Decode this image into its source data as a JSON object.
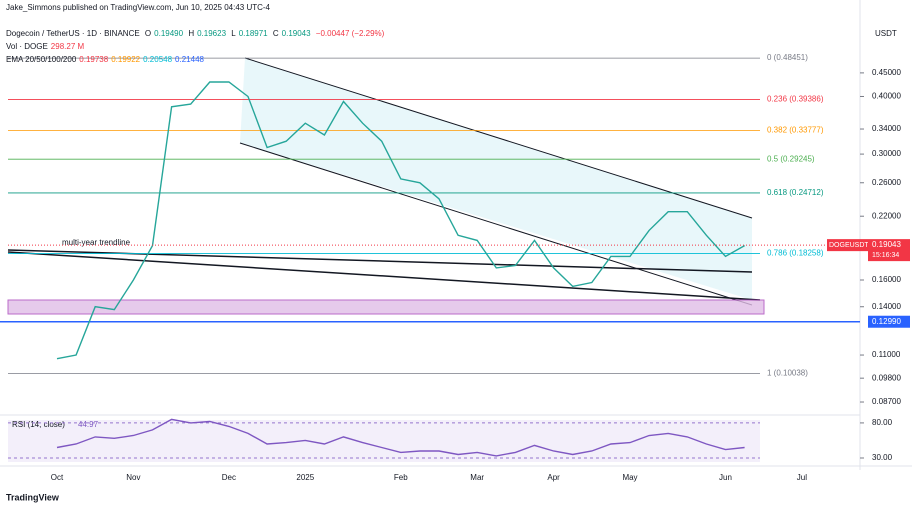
{
  "header": {
    "author": "Jake_Simmons published on TradingView.com, Jun 10, 2025 04:43 UTC-4",
    "symbol": "Dogecoin / TetherUS · 1D · BINANCE",
    "ohlc": [
      {
        "key": "O",
        "value": "0.19490"
      },
      {
        "key": "H",
        "value": "0.19623"
      },
      {
        "key": "L",
        "value": "0.18971"
      },
      {
        "key": "C",
        "value": "0.19043"
      }
    ],
    "change": "−0.00447 (−2.29%)",
    "volume_label": "Vol · DOGE",
    "volume": "298.27 M",
    "ema_label": "EMA 20/50/100/200",
    "ema_values": [
      "0.19738",
      "0.19922",
      "0.20548",
      "0.21448"
    ]
  },
  "currency": "USDT",
  "footer": "TradingView",
  "chart_data": [
    {
      "type": "line",
      "log_scale": true,
      "categories": [
        "Oct",
        null,
        null,
        null,
        "Nov",
        null,
        null,
        null,
        null,
        "Dec",
        null,
        null,
        null,
        "2025",
        null,
        null,
        null,
        null,
        "Feb",
        null,
        null,
        null,
        "Mar",
        null,
        null,
        null,
        "Apr",
        null,
        null,
        null,
        "May",
        null,
        null,
        null,
        null,
        "Jun",
        null,
        null,
        null,
        "Jul",
        null,
        null
      ],
      "series": [
        {
          "color": "#26a69a",
          "values": [
            0.108,
            0.11,
            0.14,
            0.138,
            0.16,
            0.19,
            0.38,
            0.385,
            0.43,
            0.43,
            0.4,
            0.31,
            0.32,
            0.35,
            0.33,
            0.39,
            0.35,
            0.32,
            0.265,
            0.26,
            0.24,
            0.2,
            0.195,
            0.17,
            0.172,
            0.195,
            0.17,
            0.155,
            0.158,
            0.18,
            0.18,
            0.205,
            0.225,
            0.225,
            0.2,
            0.18,
            0.19,
            null,
            null,
            null,
            null,
            null
          ]
        }
      ],
      "ylim": [
        0.0836,
        0.586
      ],
      "yticks": [
        {
          "value": 0.45,
          "label": "0.45000"
        },
        {
          "value": 0.4,
          "label": "0.40000"
        },
        {
          "value": 0.34,
          "label": "0.34000"
        },
        {
          "value": 0.3,
          "label": "0.30000"
        },
        {
          "value": 0.26,
          "label": "0.26000"
        },
        {
          "value": 0.22,
          "label": "0.22000"
        },
        {
          "value": 0.16,
          "label": "0.16000"
        },
        {
          "value": 0.14,
          "label": "0.14000"
        },
        {
          "value": 0.11,
          "label": "0.11000"
        },
        {
          "value": 0.098,
          "label": "0.09800"
        },
        {
          "value": 0.087,
          "label": "0.08700"
        }
      ],
      "fib_levels": [
        {
          "value": 0.48451,
          "label": "0 (0.48451)",
          "color": "#787b86"
        },
        {
          "value": 0.39386,
          "label": "0.236 (0.39386)",
          "color": "#f23645"
        },
        {
          "value": 0.33777,
          "label": "0.382 (0.33777)",
          "color": "#ff9800"
        },
        {
          "value": 0.29245,
          "label": "0.5 (0.29245)",
          "color": "#4caf50"
        },
        {
          "value": 0.24712,
          "label": "0.618 (0.24712)",
          "color": "#089981"
        },
        {
          "value": 0.18258,
          "label": "0.786 (0.18258)",
          "color": "#00bcd4"
        },
        {
          "value": 0.10038,
          "label": "1 (0.10038)",
          "color": "#787b86"
        }
      ],
      "support": {
        "value": 0.1299,
        "label": "0.12990",
        "color": "#2962ff"
      },
      "last_price": {
        "value": 0.19043,
        "label": "0.19043",
        "symbol": "DOGEUSDT",
        "countdown": "15:16:34",
        "color": "#f23645"
      },
      "annotation": "multi-year trendline"
    },
    {
      "type": "line",
      "label": "RSI (14, close)",
      "value_label": "44.97",
      "ylim": [
        20,
        87
      ],
      "yticks": [
        {
          "value": 80,
          "label": "80.00"
        },
        {
          "value": 30,
          "label": "30.00"
        }
      ],
      "series": [
        {
          "color": "#7e57c2",
          "values": [
            45,
            50,
            60,
            58,
            62,
            70,
            85,
            80,
            82,
            75,
            65,
            50,
            52,
            55,
            50,
            60,
            52,
            45,
            38,
            40,
            40,
            35,
            38,
            33,
            38,
            48,
            40,
            35,
            40,
            50,
            52,
            62,
            65,
            60,
            50,
            42,
            45,
            null,
            null,
            null,
            null,
            null
          ]
        }
      ]
    }
  ]
}
